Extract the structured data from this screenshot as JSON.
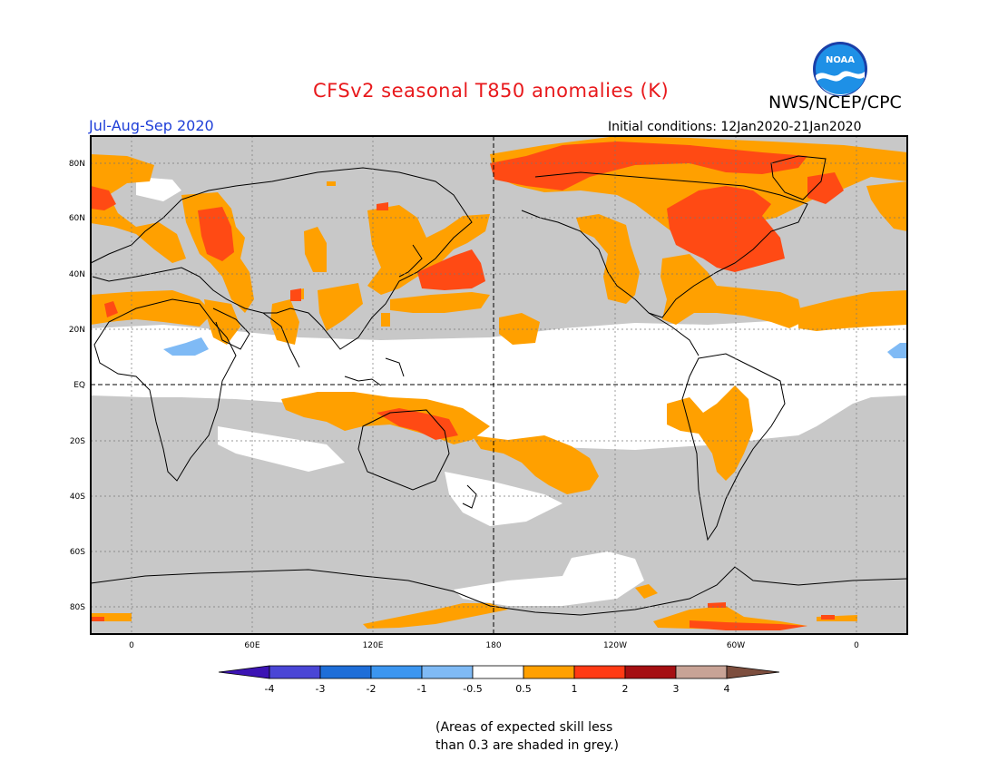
{
  "header": {
    "title": "CFSv2 seasonal T850 anomalies (K)",
    "brand": "NWS/NCEP/CPC",
    "logo_text": "NOAA",
    "period": "Jul-Aug-Sep 2020",
    "initial_conditions": "Initial conditions: 12Jan2020-21Jan2020"
  },
  "map": {
    "lat_labels": [
      "80N",
      "60N",
      "40N",
      "20N",
      "EQ",
      "20S",
      "40S",
      "60S",
      "80S"
    ],
    "lon_labels": [
      "0",
      "60E",
      "120E",
      "180",
      "120W",
      "60W",
      "0"
    ],
    "colors": {
      "land_outline": "#000000",
      "skill_grey": "#c8c8c8",
      "neutral": "#ffffff",
      "warm_05_1": "#ffa000",
      "warm_1_2": "#ff4a14",
      "cool_m05_m1": "#7fbaf5"
    }
  },
  "colorbar": {
    "ticks": [
      "-4",
      "-3",
      "-2",
      "-1",
      "-0.5",
      "0.5",
      "1",
      "2",
      "3",
      "4"
    ],
    "colors": [
      "#3c14b4",
      "#4a46d6",
      "#1e6ed8",
      "#3c96f0",
      "#7fbaf5",
      "#ffffff",
      "#ffa000",
      "#ff3a14",
      "#a50f12",
      "#c8a396",
      "#7d4e3e"
    ]
  },
  "footnote": {
    "line1": "(Areas of expected skill less",
    "line2": "than 0.3 are shaded in grey.)"
  }
}
